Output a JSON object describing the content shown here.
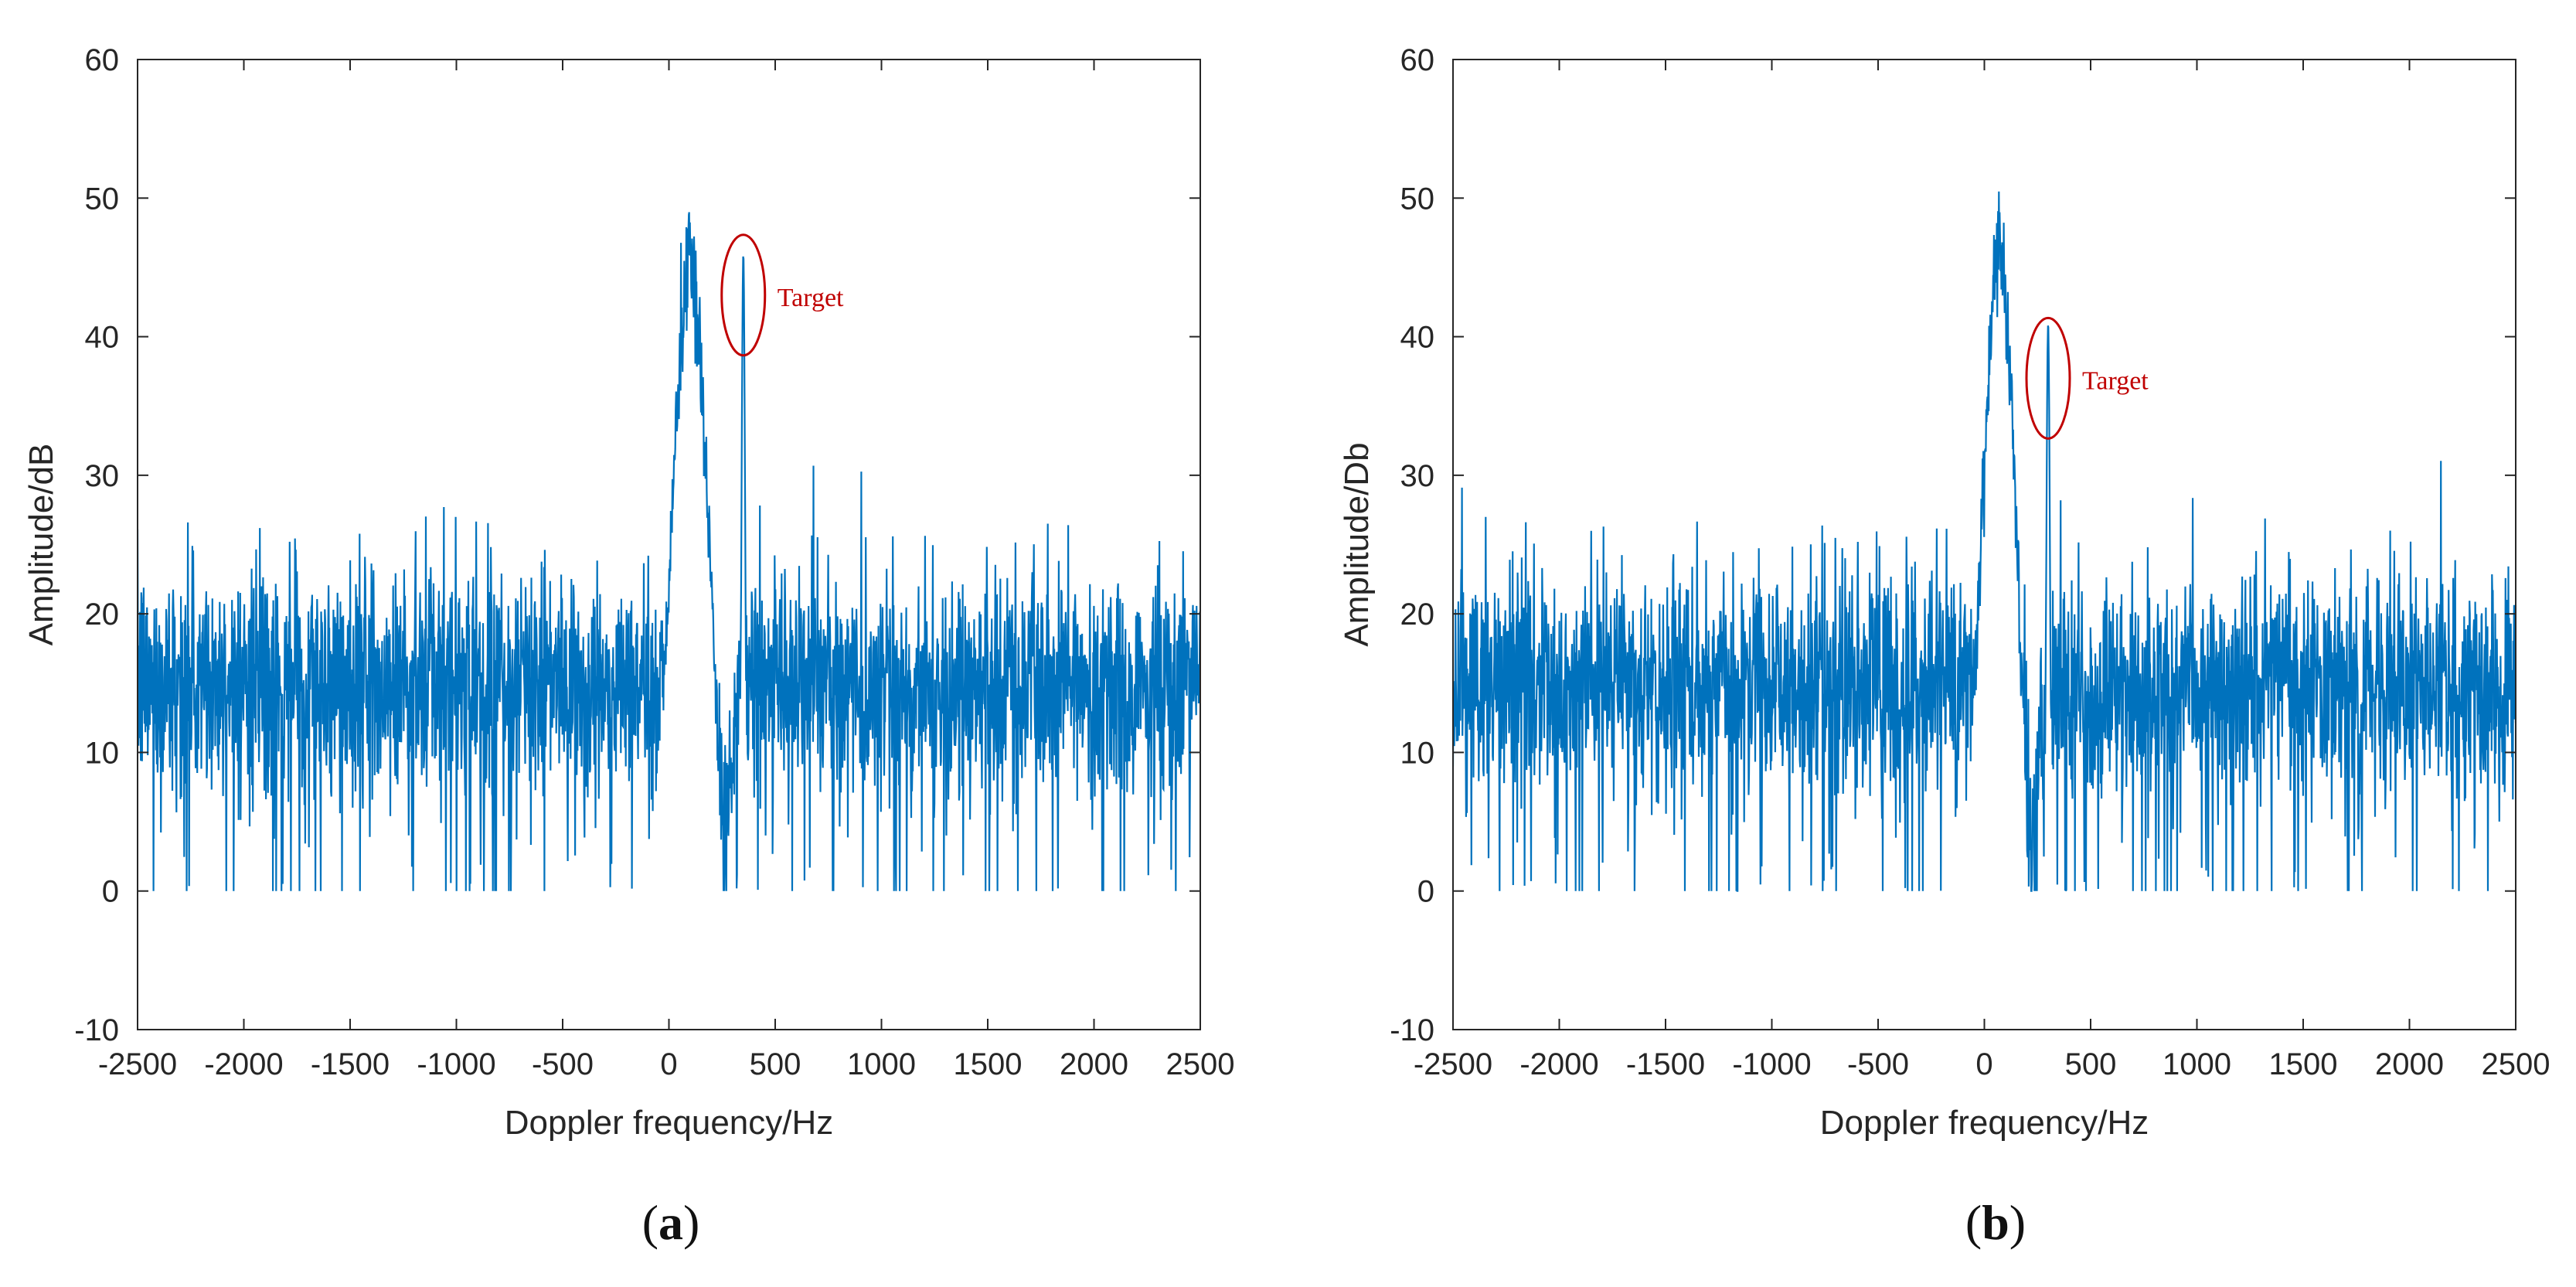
{
  "chart_data": [
    {
      "type": "line",
      "panel_label": "a",
      "xlabel": "Doppler frequency/Hz",
      "ylabel": "Amplitude/dB",
      "xlim": [
        -2500,
        2500
      ],
      "ylim": [
        -10,
        60
      ],
      "xticks": [
        -2500,
        -2000,
        -1500,
        -1000,
        -500,
        0,
        500,
        1000,
        1500,
        2000,
        2500
      ],
      "yticks": [
        -10,
        0,
        10,
        20,
        30,
        40,
        50,
        60
      ],
      "grid": false,
      "series_color": "#0072BD",
      "noise_floor_db": 15,
      "noise_spread_db": 4,
      "clutter_center_hz": 100,
      "clutter_peak_db": 49,
      "clutter_halfwidth_hz": 120,
      "target_freq_hz": 350,
      "target_peak_db": 46,
      "annotation": {
        "text": "Target",
        "x": 350,
        "y": 43,
        "color": "#C00000"
      }
    },
    {
      "type": "line",
      "panel_label": "b",
      "xlabel": "Doppler frequency/Hz",
      "ylabel": "Amplitude/Db",
      "xlim": [
        -2500,
        2500
      ],
      "ylim": [
        -10,
        60
      ],
      "xticks": [
        -2500,
        -2000,
        -1500,
        -1000,
        -500,
        0,
        500,
        1000,
        1500,
        2000,
        2500
      ],
      "yticks": [
        -10,
        0,
        10,
        20,
        30,
        40,
        50,
        60
      ],
      "grid": false,
      "series_color": "#0072BD",
      "noise_floor_db": 15,
      "noise_spread_db": 4,
      "clutter_center_hz": 70,
      "clutter_peak_db": 50,
      "clutter_halfwidth_hz": 110,
      "target_freq_hz": 300,
      "target_peak_db": 41,
      "annotation": {
        "text": "Target",
        "x": 300,
        "y": 37,
        "color": "#C00000"
      }
    }
  ],
  "captions": [
    "a",
    "b"
  ]
}
